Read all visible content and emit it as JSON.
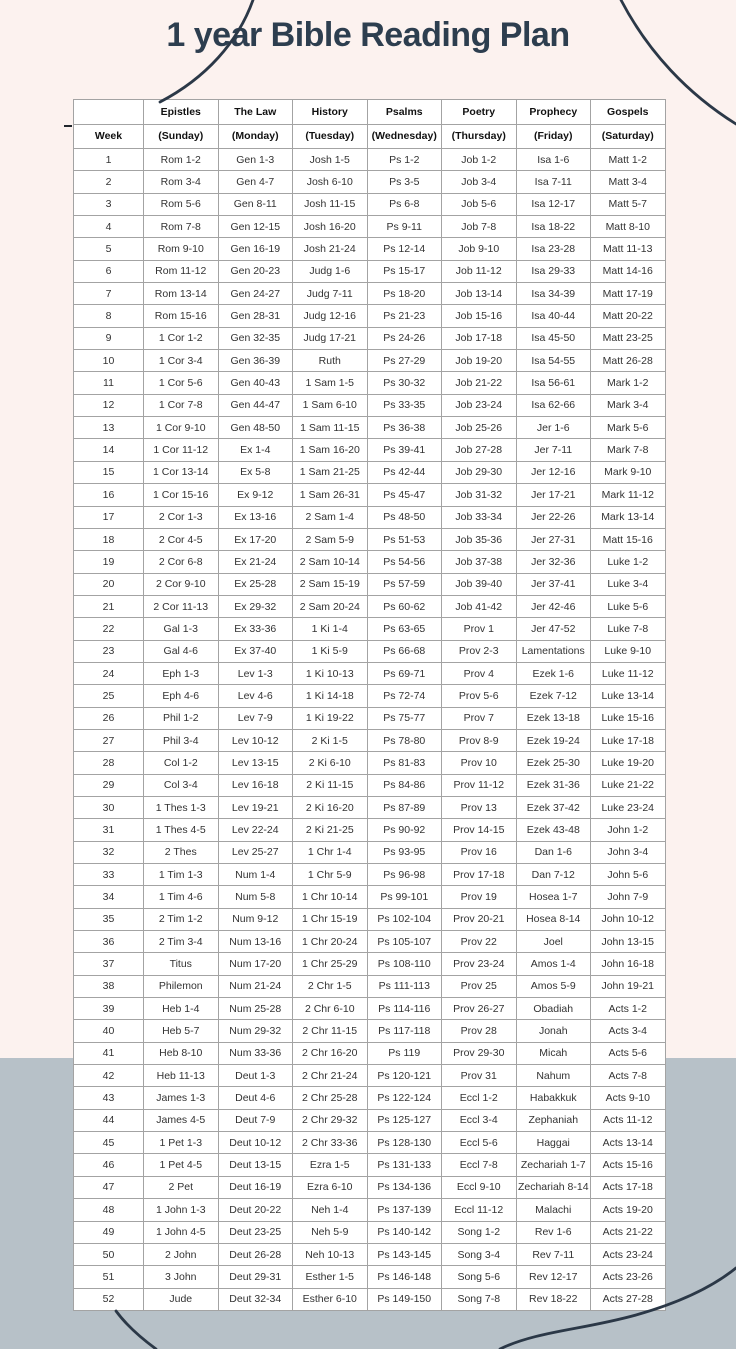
{
  "page": {
    "title": "1 year Bible Reading Plan"
  },
  "colors": {
    "background_top": "#fcf2ef",
    "background_bottom": "#b7c1c8",
    "title": "#2d3e4f",
    "curve": "#2b3847",
    "table_border": "#a3a3a3",
    "table_background": "#ffffff"
  },
  "table": {
    "header_row1": [
      "",
      "Epistles",
      "The Law",
      "History",
      "Psalms",
      "Poetry",
      "Prophecy",
      "Gospels"
    ],
    "header_row2": [
      "Week",
      "(Sunday)",
      "(Monday)",
      "(Tuesday)",
      "(Wednesday)",
      "(Thursday)",
      "(Friday)",
      "(Saturday)"
    ],
    "rows": [
      [
        "1",
        "Rom 1-2",
        "Gen 1-3",
        "Josh 1-5",
        "Ps 1-2",
        "Job 1-2",
        "Isa 1-6",
        "Matt 1-2"
      ],
      [
        "2",
        "Rom 3-4",
        "Gen 4-7",
        "Josh 6-10",
        "Ps 3-5",
        "Job 3-4",
        "Isa 7-11",
        "Matt 3-4"
      ],
      [
        "3",
        "Rom 5-6",
        "Gen 8-11",
        "Josh 11-15",
        "Ps 6-8",
        "Job 5-6",
        "Isa 12-17",
        "Matt 5-7"
      ],
      [
        "4",
        "Rom 7-8",
        "Gen 12-15",
        "Josh 16-20",
        "Ps 9-11",
        "Job 7-8",
        "Isa 18-22",
        "Matt 8-10"
      ],
      [
        "5",
        "Rom 9-10",
        "Gen 16-19",
        "Josh 21-24",
        "Ps 12-14",
        "Job 9-10",
        "Isa 23-28",
        "Matt 11-13"
      ],
      [
        "6",
        "Rom 11-12",
        "Gen 20-23",
        "Judg 1-6",
        "Ps 15-17",
        "Job 11-12",
        "Isa 29-33",
        "Matt 14-16"
      ],
      [
        "7",
        "Rom 13-14",
        "Gen 24-27",
        "Judg 7-11",
        "Ps 18-20",
        "Job 13-14",
        "Isa 34-39",
        "Matt 17-19"
      ],
      [
        "8",
        "Rom 15-16",
        "Gen 28-31",
        "Judg 12-16",
        "Ps 21-23",
        "Job 15-16",
        "Isa 40-44",
        "Matt 20-22"
      ],
      [
        "9",
        "1 Cor 1-2",
        "Gen 32-35",
        "Judg 17-21",
        "Ps 24-26",
        "Job 17-18",
        "Isa 45-50",
        "Matt 23-25"
      ],
      [
        "10",
        "1 Cor 3-4",
        "Gen 36-39",
        "Ruth",
        "Ps 27-29",
        "Job 19-20",
        "Isa 54-55",
        "Matt 26-28"
      ],
      [
        "11",
        "1 Cor 5-6",
        "Gen 40-43",
        "1 Sam 1-5",
        "Ps 30-32",
        "Job 21-22",
        "Isa 56-61",
        "Mark 1-2"
      ],
      [
        "12",
        "1 Cor 7-8",
        "Gen 44-47",
        "1 Sam 6-10",
        "Ps 33-35",
        "Job 23-24",
        "Isa 62-66",
        "Mark 3-4"
      ],
      [
        "13",
        "1 Cor 9-10",
        "Gen 48-50",
        "1 Sam 11-15",
        "Ps 36-38",
        "Job 25-26",
        "Jer 1-6",
        "Mark 5-6"
      ],
      [
        "14",
        "1 Cor 11-12",
        "Ex 1-4",
        "1 Sam 16-20",
        "Ps 39-41",
        "Job 27-28",
        "Jer 7-11",
        "Mark 7-8"
      ],
      [
        "15",
        "1 Cor 13-14",
        "Ex 5-8",
        "1 Sam 21-25",
        "Ps 42-44",
        "Job 29-30",
        "Jer 12-16",
        "Mark 9-10"
      ],
      [
        "16",
        "1 Cor 15-16",
        "Ex 9-12",
        "1 Sam 26-31",
        "Ps 45-47",
        "Job 31-32",
        "Jer 17-21",
        "Mark 11-12"
      ],
      [
        "17",
        "2 Cor 1-3",
        "Ex 13-16",
        "2 Sam 1-4",
        "Ps 48-50",
        "Job 33-34",
        "Jer 22-26",
        "Mark 13-14"
      ],
      [
        "18",
        "2 Cor 4-5",
        "Ex 17-20",
        "2 Sam 5-9",
        "Ps 51-53",
        "Job 35-36",
        "Jer 27-31",
        "Matt 15-16"
      ],
      [
        "19",
        "2 Cor 6-8",
        "Ex 21-24",
        "2 Sam 10-14",
        "Ps 54-56",
        "Job 37-38",
        "Jer 32-36",
        "Luke 1-2"
      ],
      [
        "20",
        "2 Cor 9-10",
        "Ex 25-28",
        "2 Sam 15-19",
        "Ps 57-59",
        "Job 39-40",
        "Jer 37-41",
        "Luke 3-4"
      ],
      [
        "21",
        "2 Cor 11-13",
        "Ex 29-32",
        "2 Sam 20-24",
        "Ps 60-62",
        "Job 41-42",
        "Jer 42-46",
        "Luke 5-6"
      ],
      [
        "22",
        "Gal 1-3",
        "Ex 33-36",
        "1 Ki 1-4",
        "Ps 63-65",
        "Prov 1",
        "Jer 47-52",
        "Luke 7-8"
      ],
      [
        "23",
        "Gal 4-6",
        "Ex 37-40",
        "1 Ki 5-9",
        "Ps 66-68",
        "Prov 2-3",
        "Lamentations",
        "Luke 9-10"
      ],
      [
        "24",
        "Eph 1-3",
        "Lev 1-3",
        "1 Ki 10-13",
        "Ps 69-71",
        "Prov 4",
        "Ezek 1-6",
        "Luke 11-12"
      ],
      [
        "25",
        "Eph 4-6",
        "Lev 4-6",
        "1 Ki 14-18",
        "Ps 72-74",
        "Prov 5-6",
        "Ezek 7-12",
        "Luke 13-14"
      ],
      [
        "26",
        "Phil 1-2",
        "Lev 7-9",
        "1 Ki 19-22",
        "Ps 75-77",
        "Prov 7",
        "Ezek 13-18",
        "Luke 15-16"
      ],
      [
        "27",
        "Phil 3-4",
        "Lev 10-12",
        "2 Ki 1-5",
        "Ps 78-80",
        "Prov 8-9",
        "Ezek 19-24",
        "Luke 17-18"
      ],
      [
        "28",
        "Col 1-2",
        "Lev 13-15",
        "2 Ki 6-10",
        "Ps 81-83",
        "Prov 10",
        "Ezek 25-30",
        "Luke 19-20"
      ],
      [
        "29",
        "Col 3-4",
        "Lev 16-18",
        "2 Ki 11-15",
        "Ps 84-86",
        "Prov 11-12",
        "Ezek 31-36",
        "Luke 21-22"
      ],
      [
        "30",
        "1 Thes 1-3",
        "Lev 19-21",
        "2 Ki 16-20",
        "Ps 87-89",
        "Prov 13",
        "Ezek 37-42",
        "Luke 23-24"
      ],
      [
        "31",
        "1 Thes 4-5",
        "Lev 22-24",
        "2 Ki 21-25",
        "Ps 90-92",
        "Prov 14-15",
        "Ezek 43-48",
        "John 1-2"
      ],
      [
        "32",
        "2 Thes",
        "Lev 25-27",
        "1 Chr 1-4",
        "Ps 93-95",
        "Prov 16",
        "Dan 1-6",
        "John 3-4"
      ],
      [
        "33",
        "1 Tim 1-3",
        "Num 1-4",
        "1 Chr 5-9",
        "Ps 96-98",
        "Prov 17-18",
        "Dan 7-12",
        "John 5-6"
      ],
      [
        "34",
        "1 Tim 4-6",
        "Num 5-8",
        "1 Chr 10-14",
        "Ps 99-101",
        "Prov 19",
        "Hosea 1-7",
        "John 7-9"
      ],
      [
        "35",
        "2 Tim 1-2",
        "Num 9-12",
        "1 Chr 15-19",
        "Ps 102-104",
        "Prov 20-21",
        "Hosea 8-14",
        "John 10-12"
      ],
      [
        "36",
        "2 Tim 3-4",
        "Num 13-16",
        "1 Chr 20-24",
        "Ps 105-107",
        "Prov 22",
        "Joel",
        "John 13-15"
      ],
      [
        "37",
        "Titus",
        "Num 17-20",
        "1 Chr 25-29",
        "Ps 108-110",
        "Prov 23-24",
        "Amos 1-4",
        "John 16-18"
      ],
      [
        "38",
        "Philemon",
        "Num 21-24",
        "2 Chr 1-5",
        "Ps 111-113",
        "Prov 25",
        "Amos 5-9",
        "John 19-21"
      ],
      [
        "39",
        "Heb 1-4",
        "Num 25-28",
        "2 Chr 6-10",
        "Ps 114-116",
        "Prov 26-27",
        "Obadiah",
        "Acts 1-2"
      ],
      [
        "40",
        "Heb 5-7",
        "Num 29-32",
        "2 Chr 11-15",
        "Ps 117-118",
        "Prov 28",
        "Jonah",
        "Acts 3-4"
      ],
      [
        "41",
        "Heb 8-10",
        "Num 33-36",
        "2 Chr 16-20",
        "Ps 119",
        "Prov 29-30",
        "Micah",
        "Acts 5-6"
      ],
      [
        "42",
        "Heb 11-13",
        "Deut 1-3",
        "2 Chr 21-24",
        "Ps 120-121",
        "Prov 31",
        "Nahum",
        "Acts 7-8"
      ],
      [
        "43",
        "James 1-3",
        "Deut 4-6",
        "2 Chr 25-28",
        "Ps 122-124",
        "Eccl 1-2",
        "Habakkuk",
        "Acts 9-10"
      ],
      [
        "44",
        "James 4-5",
        "Deut 7-9",
        "2 Chr 29-32",
        "Ps 125-127",
        "Eccl 3-4",
        "Zephaniah",
        "Acts 11-12"
      ],
      [
        "45",
        "1 Pet 1-3",
        "Deut 10-12",
        "2 Chr 33-36",
        "Ps 128-130",
        "Eccl 5-6",
        "Haggai",
        "Acts 13-14"
      ],
      [
        "46",
        "1 Pet 4-5",
        "Deut 13-15",
        "Ezra 1-5",
        "Ps 131-133",
        "Eccl 7-8",
        "Zechariah 1-7",
        "Acts 15-16"
      ],
      [
        "47",
        "2 Pet",
        "Deut 16-19",
        "Ezra 6-10",
        "Ps 134-136",
        "Eccl 9-10",
        "Zechariah 8-14",
        "Acts 17-18"
      ],
      [
        "48",
        "1 John 1-3",
        "Deut 20-22",
        "Neh 1-4",
        "Ps 137-139",
        "Eccl 11-12",
        "Malachi",
        "Acts 19-20"
      ],
      [
        "49",
        "1 John 4-5",
        "Deut 23-25",
        "Neh 5-9",
        "Ps 140-142",
        "Song 1-2",
        "Rev 1-6",
        "Acts 21-22"
      ],
      [
        "50",
        "2 John",
        "Deut 26-28",
        "Neh 10-13",
        "Ps 143-145",
        "Song 3-4",
        "Rev 7-11",
        "Acts 23-24"
      ],
      [
        "51",
        "3 John",
        "Deut 29-31",
        "Esther 1-5",
        "Ps 146-148",
        "Song 5-6",
        "Rev 12-17",
        "Acts 23-26"
      ],
      [
        "52",
        "Jude",
        "Deut 32-34",
        "Esther 6-10",
        "Ps 149-150",
        "Song 7-8",
        "Rev 18-22",
        "Acts 27-28"
      ]
    ]
  }
}
